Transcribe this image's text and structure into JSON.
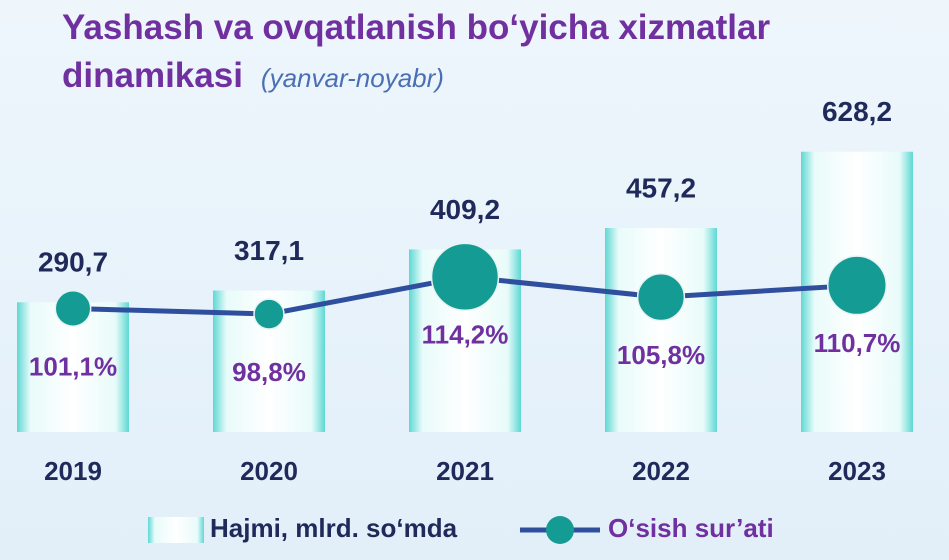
{
  "chart_data": {
    "type": "bar",
    "title": "Yashash va ovqatlanish bo‘yicha xizmatlar dinamikasi",
    "subtitle": "(yanvar-noyabr)",
    "categories": [
      "2019",
      "2020",
      "2021",
      "2022",
      "2023"
    ],
    "series": [
      {
        "name": "Hajmi, mlrd. so‘mda",
        "type": "bar",
        "color": "#5fd8d3",
        "values": [
          290.7,
          317.1,
          409.2,
          457.2,
          628.2
        ],
        "value_labels": [
          "290,7",
          "317,1",
          "409,2",
          "457,2",
          "628,2"
        ]
      },
      {
        "name": "O‘sish sur’ati",
        "type": "line",
        "axis": "y2",
        "color": "#2f4f9e",
        "marker_color": "#139b94",
        "values": [
          101.1,
          98.8,
          114.2,
          105.8,
          110.7
        ],
        "value_labels": [
          "101,1%",
          "98,8%",
          "114,2%",
          "105,8%",
          "110,7%"
        ]
      }
    ],
    "ylim": [
      0,
      650
    ],
    "y2lim": [
      50,
      170
    ]
  }
}
